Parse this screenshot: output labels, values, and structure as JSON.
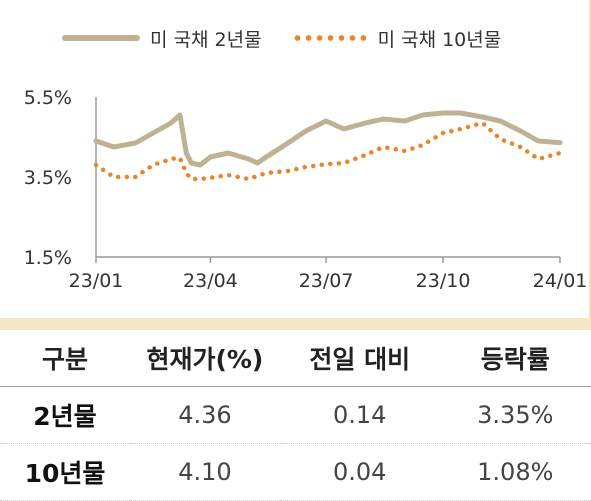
{
  "chart_data": {
    "type": "line",
    "x_ticks": [
      "23/01",
      "23/04",
      "23/07",
      "23/10",
      "24/01"
    ],
    "y_ticks": [
      "5.5%",
      "3.5%",
      "1.5%"
    ],
    "ylim": [
      1.5,
      5.5
    ],
    "xlim": [
      "2023-01-01",
      "2024-01-01"
    ],
    "legend_position": "top",
    "series": [
      {
        "name": "미 국채 2년물",
        "color": "#bfb294",
        "style": "solid",
        "points": [
          [
            "2023-01-01",
            4.4
          ],
          [
            "2023-01-15",
            4.25
          ],
          [
            "2023-02-01",
            4.35
          ],
          [
            "2023-02-15",
            4.6
          ],
          [
            "2023-03-01",
            4.85
          ],
          [
            "2023-03-08",
            5.05
          ],
          [
            "2023-03-13",
            4.1
          ],
          [
            "2023-03-17",
            3.85
          ],
          [
            "2023-03-24",
            3.8
          ],
          [
            "2023-04-01",
            4.0
          ],
          [
            "2023-04-15",
            4.1
          ],
          [
            "2023-05-01",
            3.95
          ],
          [
            "2023-05-08",
            3.85
          ],
          [
            "2023-05-15",
            4.0
          ],
          [
            "2023-06-01",
            4.35
          ],
          [
            "2023-06-15",
            4.65
          ],
          [
            "2023-07-01",
            4.9
          ],
          [
            "2023-07-15",
            4.7
          ],
          [
            "2023-08-01",
            4.85
          ],
          [
            "2023-08-15",
            4.95
          ],
          [
            "2023-09-01",
            4.9
          ],
          [
            "2023-09-15",
            5.05
          ],
          [
            "2023-10-01",
            5.1
          ],
          [
            "2023-10-15",
            5.1
          ],
          [
            "2023-11-01",
            5.0
          ],
          [
            "2023-11-15",
            4.9
          ],
          [
            "2023-12-01",
            4.65
          ],
          [
            "2023-12-15",
            4.4
          ],
          [
            "2024-01-01",
            4.36
          ]
        ]
      },
      {
        "name": "미 국채 10년물",
        "color": "#e8862e",
        "style": "dotted",
        "points": [
          [
            "2023-01-01",
            3.8
          ],
          [
            "2023-01-15",
            3.5
          ],
          [
            "2023-02-01",
            3.5
          ],
          [
            "2023-02-15",
            3.8
          ],
          [
            "2023-03-01",
            3.95
          ],
          [
            "2023-03-08",
            3.98
          ],
          [
            "2023-03-13",
            3.6
          ],
          [
            "2023-03-17",
            3.45
          ],
          [
            "2023-03-24",
            3.45
          ],
          [
            "2023-04-01",
            3.48
          ],
          [
            "2023-04-15",
            3.55
          ],
          [
            "2023-05-01",
            3.45
          ],
          [
            "2023-05-15",
            3.6
          ],
          [
            "2023-06-01",
            3.65
          ],
          [
            "2023-06-15",
            3.75
          ],
          [
            "2023-07-01",
            3.82
          ],
          [
            "2023-07-15",
            3.85
          ],
          [
            "2023-08-01",
            4.05
          ],
          [
            "2023-08-15",
            4.25
          ],
          [
            "2023-09-01",
            4.15
          ],
          [
            "2023-09-15",
            4.3
          ],
          [
            "2023-10-01",
            4.6
          ],
          [
            "2023-10-15",
            4.7
          ],
          [
            "2023-11-01",
            4.85
          ],
          [
            "2023-11-15",
            4.45
          ],
          [
            "2023-12-01",
            4.25
          ],
          [
            "2023-12-15",
            3.95
          ],
          [
            "2024-01-01",
            4.1
          ]
        ]
      }
    ]
  },
  "table": {
    "headers": [
      "구분",
      "현재가(%)",
      "전일 대비",
      "등락률"
    ],
    "rows": [
      [
        "2년물",
        "4.36",
        "0.14",
        "3.35%"
      ],
      [
        "10년물",
        "4.10",
        "0.04",
        "1.08%"
      ]
    ]
  }
}
